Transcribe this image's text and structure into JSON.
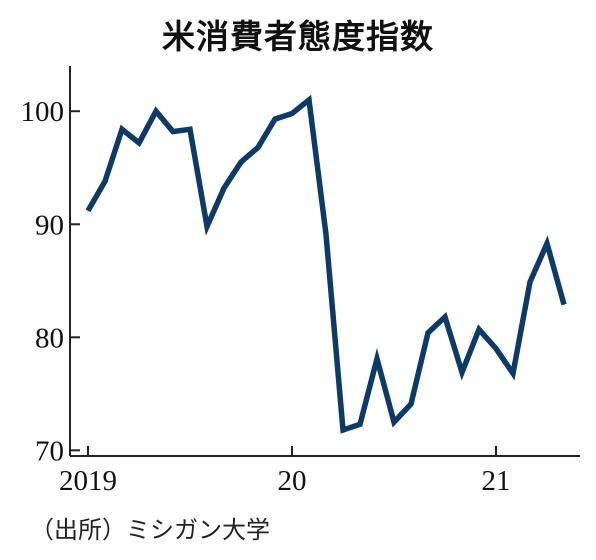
{
  "title": "米消費者態度指数",
  "source": "（出所）ミシガン大学",
  "colors": {
    "line": "#0e3a67",
    "axis": "#222222",
    "text": "#111111"
  },
  "chart_data": {
    "type": "line",
    "title": "米消費者態度指数",
    "xlabel": "",
    "ylabel": "",
    "x": [
      "2019-01",
      "2019-02",
      "2019-03",
      "2019-04",
      "2019-05",
      "2019-06",
      "2019-07",
      "2019-08",
      "2019-09",
      "2019-10",
      "2019-11",
      "2019-12",
      "2020-01",
      "2020-02",
      "2020-03",
      "2020-04",
      "2020-05",
      "2020-06",
      "2020-07",
      "2020-08",
      "2020-09",
      "2020-10",
      "2020-11",
      "2020-12",
      "2021-01",
      "2021-02",
      "2021-03",
      "2021-04",
      "2021-05"
    ],
    "series": [
      {
        "values": [
          91.2,
          93.8,
          98.4,
          97.2,
          100.0,
          98.2,
          98.4,
          89.8,
          93.2,
          95.5,
          96.8,
          99.3,
          99.8,
          101.0,
          89.1,
          71.8,
          72.3,
          78.1,
          72.5,
          74.1,
          80.4,
          81.8,
          76.9,
          80.7,
          79.0,
          76.8,
          84.9,
          88.3,
          82.9
        ]
      }
    ],
    "ylim": [
      69.5,
      104
    ],
    "yticks": [
      70,
      80,
      90,
      100
    ],
    "yticklabels": [
      "70",
      "80",
      "90",
      "100"
    ],
    "xticks": [
      {
        "at": "2019-01",
        "label": "2019"
      },
      {
        "at": "2020-01",
        "label": "20"
      },
      {
        "at": "2021-01",
        "label": "21"
      }
    ],
    "grid": false,
    "legend": "none"
  }
}
